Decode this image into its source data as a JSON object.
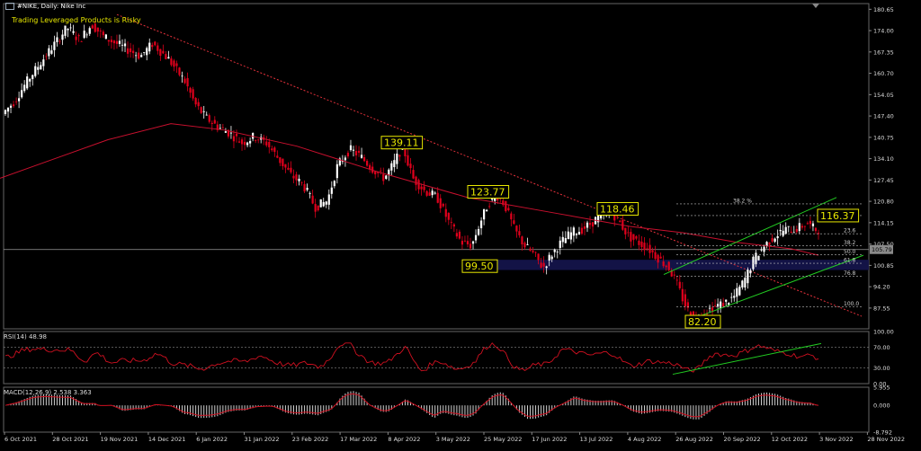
{
  "header": {
    "title": "#NIKE, Daily:  Nike Inc",
    "warning": "Trading Leveraged Products is Risky"
  },
  "indicators": {
    "rsi_label": "RSI(14) 48.98",
    "macd_label": "MACD(12,26,9) 2.538 3.363"
  },
  "colors": {
    "background": "#000000",
    "bull_candle": "#ffffff",
    "bear_candle": "#e0001c",
    "moving_average": "#c8102e",
    "trendline": "#e0303a",
    "channel": "#22cc22",
    "annotation_box": "#e8e800",
    "zone": "#14144a",
    "fib": "#bbbbbb"
  },
  "chart_data": {
    "type": "candlestick",
    "title": "#NIKE, Daily:  Nike Inc",
    "y_ticks": [
      "180.65",
      "174.00",
      "167.35",
      "160.70",
      "154.05",
      "147.40",
      "140.75",
      "134.10",
      "127.45",
      "120.80",
      "114.15",
      "107.50",
      "100.85",
      "94.20",
      "87.55"
    ],
    "ylim": [
      82.2,
      181.3
    ],
    "current_price_label": "105.79",
    "x_ticks": [
      "6 Oct 2021",
      "28 Oct 2021",
      "19 Nov 2021",
      "14 Dec 2021",
      "6 Jan 2022",
      "31 Jan 2022",
      "23 Feb 2022",
      "17 Mar 2022",
      "8 Apr 2022",
      "3 May 2022",
      "25 May 2022",
      "17 Jun 2022",
      "13 Jul 2022",
      "4 Aug 2022",
      "26 Aug 2022",
      "20 Sep 2022",
      "12 Oct 2022",
      "3 Nov 2022",
      "28 Nov 2022"
    ],
    "close_path": [
      [
        0,
        148
      ],
      [
        6,
        152
      ],
      [
        12,
        158
      ],
      [
        20,
        165
      ],
      [
        26,
        170
      ],
      [
        32,
        175
      ],
      [
        38,
        171
      ],
      [
        44,
        176
      ],
      [
        50,
        172
      ],
      [
        56,
        170
      ],
      [
        62,
        168
      ],
      [
        68,
        166
      ],
      [
        74,
        170
      ],
      [
        82,
        165
      ],
      [
        90,
        158
      ],
      [
        95,
        151
      ],
      [
        100,
        147
      ],
      [
        106,
        144
      ],
      [
        112,
        142
      ],
      [
        118,
        139
      ],
      [
        124,
        141
      ],
      [
        130,
        139
      ],
      [
        136,
        134
      ],
      [
        142,
        129
      ],
      [
        148,
        126
      ],
      [
        154,
        119
      ],
      [
        160,
        121
      ],
      [
        165,
        132
      ],
      [
        171,
        137
      ],
      [
        176,
        135
      ],
      [
        182,
        131
      ],
      [
        188,
        128
      ],
      [
        193,
        133
      ],
      [
        197,
        138
      ],
      [
        202,
        128
      ],
      [
        208,
        124
      ],
      [
        214,
        122
      ],
      [
        220,
        114
      ],
      [
        226,
        108
      ],
      [
        231,
        107
      ],
      [
        235,
        114
      ],
      [
        239,
        120
      ],
      [
        243,
        123
      ],
      [
        247,
        120
      ],
      [
        252,
        112
      ],
      [
        257,
        107
      ],
      [
        262,
        104
      ],
      [
        266,
        100
      ],
      [
        270,
        104
      ],
      [
        275,
        108
      ],
      [
        280,
        111
      ],
      [
        285,
        112
      ],
      [
        290,
        114
      ],
      [
        295,
        117
      ],
      [
        299,
        118
      ],
      [
        303,
        115
      ],
      [
        308,
        110
      ],
      [
        313,
        108
      ],
      [
        318,
        106
      ],
      [
        323,
        103
      ],
      [
        328,
        100
      ],
      [
        332,
        95
      ],
      [
        335,
        90
      ],
      [
        338,
        86
      ],
      [
        341,
        84
      ],
      [
        345,
        86
      ],
      [
        350,
        88
      ],
      [
        355,
        89
      ],
      [
        360,
        91
      ],
      [
        365,
        96
      ],
      [
        370,
        103
      ],
      [
        375,
        107
      ],
      [
        380,
        110
      ],
      [
        385,
        112
      ],
      [
        390,
        112
      ],
      [
        396,
        114
      ],
      [
        400,
        112
      ]
    ],
    "annotations": [
      {
        "label": "139.11",
        "value": 139.11
      },
      {
        "label": "123.77",
        "value": 123.77
      },
      {
        "label": "118.46",
        "value": 118.46
      },
      {
        "label": "99.50",
        "value": 99.5
      },
      {
        "label": "82.20",
        "value": 82.2
      },
      {
        "label": "116.37",
        "value": 116.37
      }
    ],
    "fib_levels": [
      {
        "label": "38.2 %"
      },
      {
        "label": "0.0"
      },
      {
        "label": "23.6"
      },
      {
        "label": "38.2"
      },
      {
        "label": "50.0"
      },
      {
        "label": "61.8"
      },
      {
        "label": "76.8"
      },
      {
        "label": "100.0"
      }
    ],
    "rsi": {
      "y_ticks": [
        "100.00",
        "70.00",
        "30.00",
        "0.00"
      ],
      "ylim": [
        0,
        100
      ],
      "levels": [
        70,
        30
      ],
      "last": 48.98
    },
    "macd": {
      "y_ticks": [
        "5.955",
        "0.000",
        "-8.792"
      ],
      "ylim": [
        -8.792,
        5.955
      ],
      "main": 2.538,
      "signal": 3.363
    }
  }
}
